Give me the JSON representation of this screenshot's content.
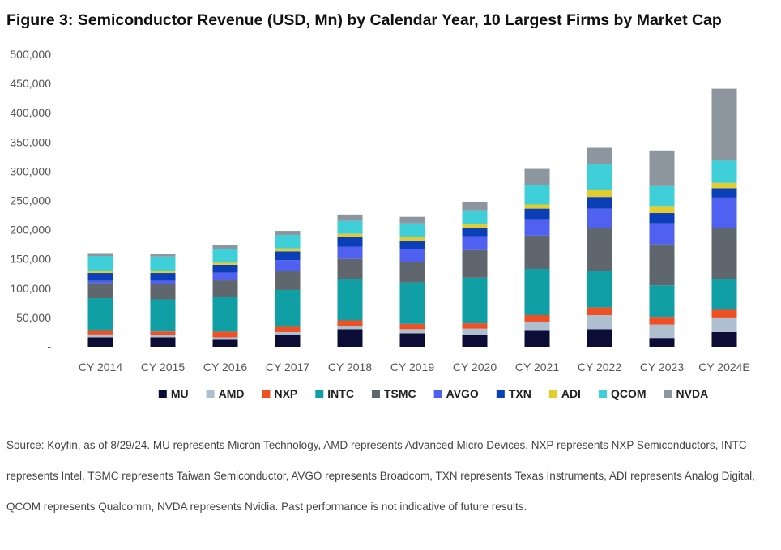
{
  "chart_data": {
    "type": "bar",
    "stacked": true,
    "title": "Figure 3: Semiconductor Revenue (USD, Mn) by Calendar Year, 10 Largest Firms by Market Cap",
    "categories": [
      "CY 2014",
      "CY 2015",
      "CY 2016",
      "CY 2017",
      "CY 2018",
      "CY 2019",
      "CY 2020",
      "CY 2021",
      "CY 2022",
      "CY 2023",
      "CY 2024E"
    ],
    "ylim": [
      0,
      500000
    ],
    "yticks": [
      0,
      50000,
      100000,
      150000,
      200000,
      250000,
      300000,
      350000,
      400000,
      450000,
      500000
    ],
    "ytick_labels": [
      "-",
      "50,000",
      "100,000",
      "150,000",
      "200,000",
      "250,000",
      "300,000",
      "350,000",
      "400,000",
      "450,000",
      "500,000"
    ],
    "grid": false,
    "legend_position": "bottom",
    "series": [
      {
        "name": "MU",
        "color": "#0b0d36",
        "values": [
          16000,
          16000,
          12000,
          20000,
          30000,
          23000,
          21000,
          27000,
          30000,
          15000,
          25000
        ]
      },
      {
        "name": "AMD",
        "color": "#aebfd0",
        "values": [
          5000,
          4000,
          4000,
          5000,
          6000,
          7000,
          10000,
          16000,
          24000,
          23000,
          25000
        ]
      },
      {
        "name": "NXP",
        "color": "#f04e23",
        "values": [
          6000,
          6000,
          9500,
          9000,
          9000,
          9000,
          9000,
          11000,
          13000,
          13000,
          13000
        ]
      },
      {
        "name": "INTC",
        "color": "#0f9fa5",
        "values": [
          56000,
          55000,
          59000,
          63000,
          71000,
          71000,
          78000,
          79000,
          63000,
          54000,
          52000
        ]
      },
      {
        "name": "TSMC",
        "color": "#5f666d",
        "values": [
          26000,
          26000,
          29000,
          33000,
          34000,
          35000,
          47000,
          57000,
          73000,
          70000,
          88000
        ]
      },
      {
        "name": "AVGO",
        "color": "#5060f0",
        "values": [
          4000,
          6000,
          13000,
          18000,
          21000,
          22000,
          24000,
          28000,
          33000,
          36000,
          52000
        ]
      },
      {
        "name": "TXN",
        "color": "#0a3fb8",
        "values": [
          13000,
          13000,
          13500,
          15000,
          16000,
          14000,
          14000,
          18000,
          20000,
          17500,
          16000
        ]
      },
      {
        "name": "ADI",
        "color": "#e4cc2c",
        "values": [
          3000,
          3000,
          3500,
          5000,
          6000,
          6000,
          6000,
          7000,
          12000,
          12000,
          9000
        ]
      },
      {
        "name": "QCOM",
        "color": "#3ecfd8",
        "values": [
          26000,
          25000,
          23500,
          23000,
          22000,
          24000,
          24000,
          34000,
          44000,
          34000,
          38000
        ]
      },
      {
        "name": "NVDA",
        "color": "#8d969f",
        "values": [
          5000,
          5000,
          7000,
          7000,
          11000,
          11000,
          15000,
          27000,
          28000,
          61000,
          123000
        ]
      }
    ]
  },
  "source_text": "Source: Koyfin, as of 8/29/24. MU represents Micron Technology, AMD represents Advanced Micro Devices, NXP represents NXP Semiconductors, INTC represents Intel, TSMC represents Taiwan Semiconductor, AVGO represents Broadcom, TXN represents Texas Instruments, ADI represents Analog Digital, QCOM represents Qualcomm, NVDA represents Nvidia. Past performance is not indicative of future results."
}
